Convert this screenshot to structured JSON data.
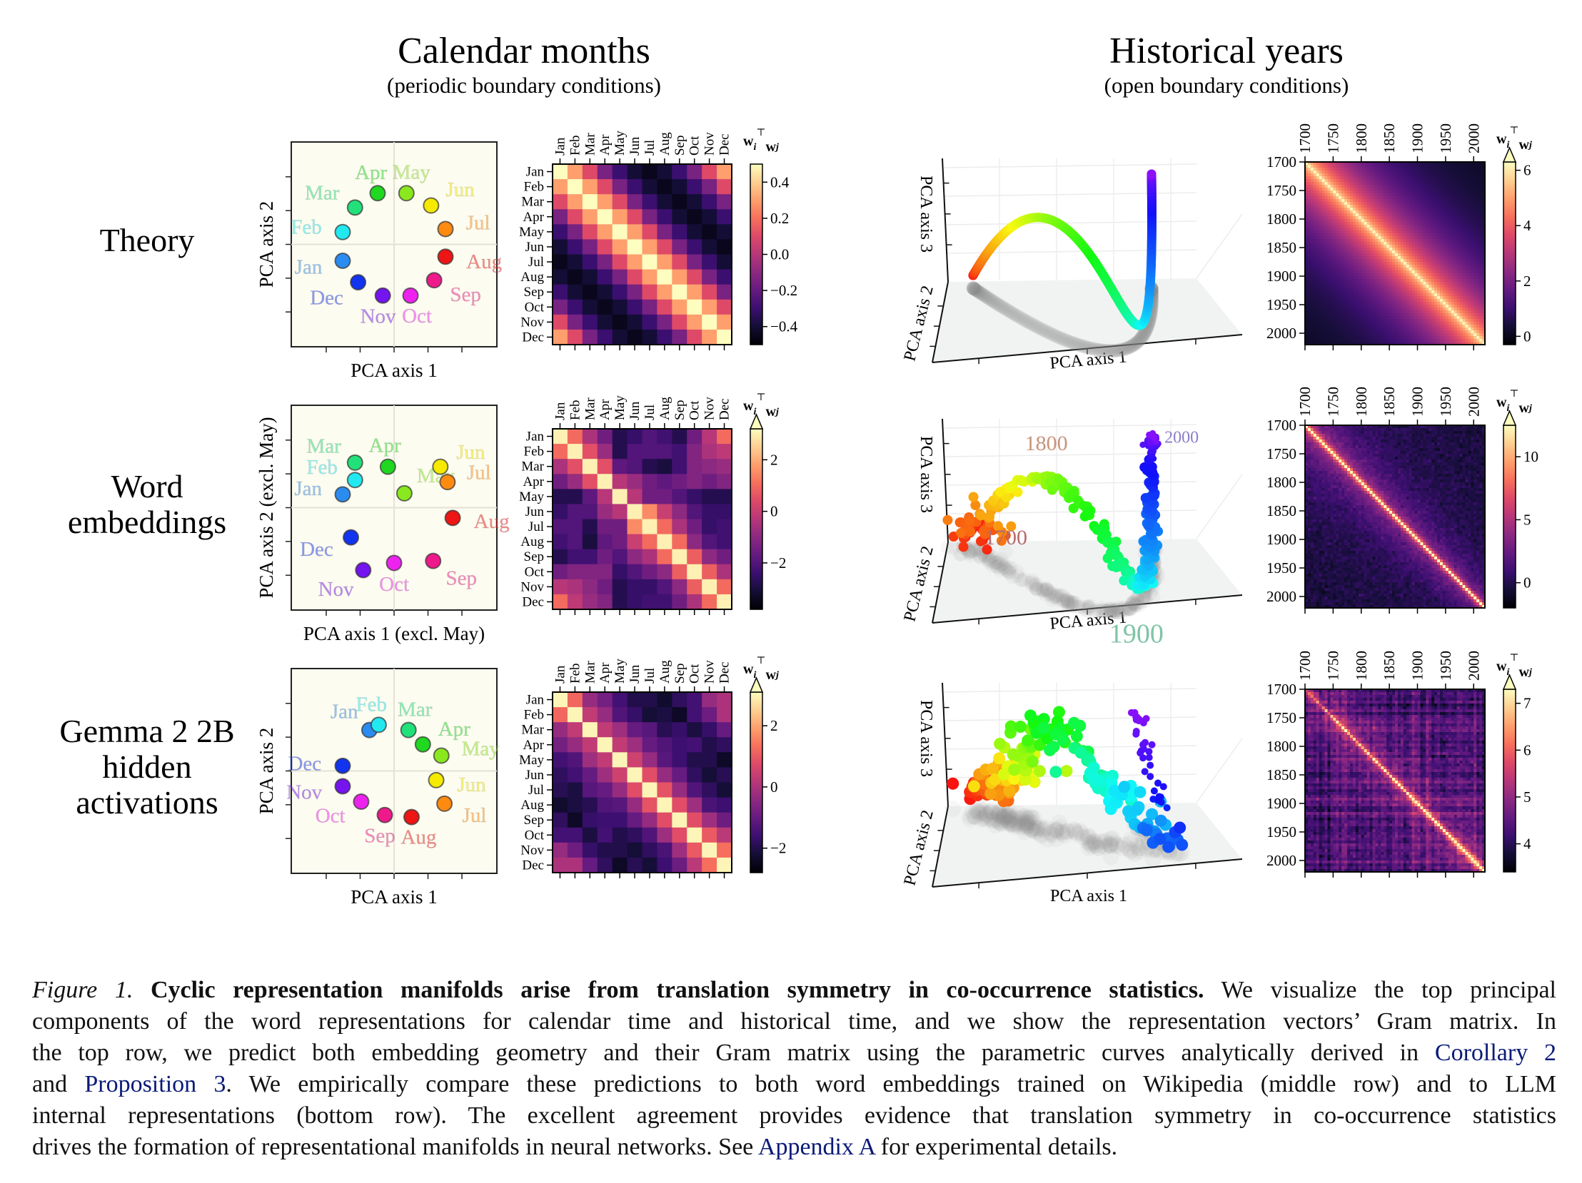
{
  "columns": [
    {
      "title": "Calendar months",
      "subtitle": "(periodic boundary conditions)"
    },
    {
      "title": "Historical years",
      "subtitle": "(open boundary conditions)"
    }
  ],
  "rows": [
    {
      "label_lines": [
        "Theory"
      ]
    },
    {
      "label_lines": [
        "Word",
        "embeddings"
      ]
    },
    {
      "label_lines": [
        "Gemma 2 2B",
        "hidden",
        "activations"
      ]
    }
  ],
  "colorbar_label": {
    "base1": "w",
    "sub1": "i",
    "sup": "⊤",
    "base2": "w",
    "sub2": "j"
  },
  "months": [
    "Jan",
    "Feb",
    "Mar",
    "Apr",
    "May",
    "Jun",
    "Jul",
    "Aug",
    "Sep",
    "Oct",
    "Nov",
    "Dec"
  ],
  "month_colors": [
    "#2a8cf0",
    "#22e8f0",
    "#22e07a",
    "#1fd81f",
    "#8ae81e",
    "#f5ea00",
    "#ff8a10",
    "#ee1515",
    "#ee1a8a",
    "#ee22ee",
    "#7414ee",
    "#1234ee"
  ],
  "chart_data": [
    {
      "id": "months-theory-scatter",
      "type": "scatter",
      "xlabel": "PCA axis 1",
      "ylabel": "PCA axis 2",
      "xlim": [
        -1,
        1
      ],
      "ylim": [
        -1,
        1
      ],
      "ticks": [
        -0.66,
        -0.33,
        0,
        0.33,
        0.66
      ],
      "grid_zero_lines": true,
      "points": [
        {
          "label": "Jan",
          "x": -0.5,
          "y": -0.16
        },
        {
          "label": "Feb",
          "x": -0.5,
          "y": 0.12
        },
        {
          "label": "Mar",
          "x": -0.38,
          "y": 0.36
        },
        {
          "label": "Apr",
          "x": -0.16,
          "y": 0.5
        },
        {
          "label": "May",
          "x": 0.12,
          "y": 0.5
        },
        {
          "label": "Jun",
          "x": 0.36,
          "y": 0.38
        },
        {
          "label": "Jul",
          "x": 0.5,
          "y": 0.15
        },
        {
          "label": "Aug",
          "x": 0.5,
          "y": -0.12
        },
        {
          "label": "Sep",
          "x": 0.39,
          "y": -0.35
        },
        {
          "label": "Oct",
          "x": 0.16,
          "y": -0.5
        },
        {
          "label": "Nov",
          "x": -0.11,
          "y": -0.5
        },
        {
          "label": "Dec",
          "x": -0.35,
          "y": -0.37
        }
      ]
    },
    {
      "id": "months-word-scatter",
      "type": "scatter",
      "xlabel": "PCA axis 1 (excl. May)",
      "ylabel": "PCA axis 2 (excl. May)",
      "xlim": [
        -1,
        1
      ],
      "ylim": [
        -1,
        1
      ],
      "ticks": [
        -0.66,
        -0.33,
        0,
        0.33,
        0.66
      ],
      "grid_zero_lines": true,
      "points": [
        {
          "label": "Jan",
          "x": -0.5,
          "y": 0.13
        },
        {
          "label": "Feb",
          "x": -0.38,
          "y": 0.27
        },
        {
          "label": "Mar",
          "x": -0.38,
          "y": 0.44
        },
        {
          "label": "Apr",
          "x": -0.06,
          "y": 0.4
        },
        {
          "label": "May",
          "x": 0.1,
          "y": 0.14
        },
        {
          "label": "Jun",
          "x": 0.45,
          "y": 0.4
        },
        {
          "label": "Jul",
          "x": 0.52,
          "y": 0.25
        },
        {
          "label": "Aug",
          "x": 0.57,
          "y": -0.1
        },
        {
          "label": "Sep",
          "x": 0.38,
          "y": -0.52
        },
        {
          "label": "Oct",
          "x": 0.0,
          "y": -0.54
        },
        {
          "label": "Nov",
          "x": -0.3,
          "y": -0.61
        },
        {
          "label": "Dec",
          "x": -0.42,
          "y": -0.29
        }
      ]
    },
    {
      "id": "months-gemma-scatter",
      "type": "scatter",
      "xlabel": "PCA axis 1",
      "ylabel": "PCA axis 2",
      "xlim": [
        -1,
        1
      ],
      "ylim": [
        -1,
        1
      ],
      "ticks": [
        -0.66,
        -0.33,
        0,
        0.33,
        0.66
      ],
      "grid_zero_lines": true,
      "points": [
        {
          "label": "Jan",
          "x": -0.24,
          "y": 0.4
        },
        {
          "label": "Feb",
          "x": -0.15,
          "y": 0.45
        },
        {
          "label": "Mar",
          "x": 0.14,
          "y": 0.4
        },
        {
          "label": "Apr",
          "x": 0.28,
          "y": 0.26
        },
        {
          "label": "May",
          "x": 0.46,
          "y": 0.15
        },
        {
          "label": "Jun",
          "x": 0.41,
          "y": -0.09
        },
        {
          "label": "Jul",
          "x": 0.49,
          "y": -0.32
        },
        {
          "label": "Aug",
          "x": 0.17,
          "y": -0.45
        },
        {
          "label": "Sep",
          "x": -0.09,
          "y": -0.43
        },
        {
          "label": "Oct",
          "x": -0.32,
          "y": -0.3
        },
        {
          "label": "Nov",
          "x": -0.5,
          "y": -0.15
        },
        {
          "label": "Dec",
          "x": -0.5,
          "y": 0.05
        }
      ]
    },
    {
      "id": "months-theory-gram",
      "type": "heatmap",
      "colormap": "magma",
      "clim": [
        -0.5,
        0.5
      ],
      "colorbar_extend": "neither",
      "colorbar_ticks": [
        0.4,
        0.2,
        0.0,
        -0.2,
        -0.4
      ],
      "colorbar_tick_labels": [
        "0.4",
        "0.2",
        "0.0",
        "−0.2",
        "−0.4"
      ],
      "values": [
        [
          0.5,
          0.3,
          0.1,
          -0.15,
          -0.3,
          -0.4,
          -0.45,
          -0.4,
          -0.3,
          -0.15,
          0.1,
          0.3
        ],
        [
          0.3,
          0.5,
          0.3,
          0.1,
          -0.15,
          -0.3,
          -0.4,
          -0.45,
          -0.4,
          -0.3,
          -0.15,
          0.1
        ],
        [
          0.1,
          0.3,
          0.5,
          0.3,
          0.1,
          -0.15,
          -0.3,
          -0.4,
          -0.45,
          -0.4,
          -0.3,
          -0.15
        ],
        [
          -0.15,
          0.1,
          0.3,
          0.5,
          0.3,
          0.1,
          -0.15,
          -0.3,
          -0.4,
          -0.45,
          -0.4,
          -0.3
        ],
        [
          -0.3,
          -0.15,
          0.1,
          0.3,
          0.5,
          0.3,
          0.1,
          -0.15,
          -0.3,
          -0.4,
          -0.45,
          -0.4
        ],
        [
          -0.4,
          -0.3,
          -0.15,
          0.1,
          0.3,
          0.5,
          0.3,
          0.1,
          -0.15,
          -0.3,
          -0.4,
          -0.45
        ],
        [
          -0.45,
          -0.4,
          -0.3,
          -0.15,
          0.1,
          0.3,
          0.5,
          0.3,
          0.1,
          -0.15,
          -0.3,
          -0.4
        ],
        [
          -0.4,
          -0.45,
          -0.4,
          -0.3,
          -0.15,
          0.1,
          0.3,
          0.5,
          0.3,
          0.1,
          -0.15,
          -0.3
        ],
        [
          -0.3,
          -0.4,
          -0.45,
          -0.4,
          -0.3,
          -0.15,
          0.1,
          0.3,
          0.5,
          0.3,
          0.1,
          -0.15
        ],
        [
          -0.15,
          -0.3,
          -0.4,
          -0.45,
          -0.4,
          -0.3,
          -0.15,
          0.1,
          0.3,
          0.5,
          0.3,
          0.1
        ],
        [
          0.1,
          -0.15,
          -0.3,
          -0.4,
          -0.45,
          -0.4,
          -0.3,
          -0.15,
          0.1,
          0.3,
          0.5,
          0.3
        ],
        [
          0.3,
          0.1,
          -0.15,
          -0.3,
          -0.4,
          -0.45,
          -0.4,
          -0.3,
          -0.15,
          0.1,
          0.3,
          0.5
        ]
      ]
    },
    {
      "id": "months-word-gram",
      "type": "heatmap",
      "colormap": "magma",
      "clim": [
        -3.8,
        3.2
      ],
      "colorbar_extend": "max",
      "colorbar_ticks": [
        2,
        0,
        -2
      ],
      "colorbar_tick_labels": [
        "2",
        "0",
        "−2"
      ],
      "values": [
        [
          3,
          1,
          -0.5,
          -1.5,
          -2.8,
          -2.5,
          -2,
          -2.3,
          -2.8,
          -1.5,
          -0.3,
          1
        ],
        [
          1,
          3,
          0.5,
          -0.8,
          -2.8,
          -2,
          -2,
          -2,
          -2.3,
          -1.2,
          -0.5,
          -0.2
        ],
        [
          -0.5,
          0.5,
          3,
          0.5,
          -1.8,
          -2,
          -2.8,
          -3,
          -2.3,
          -1.2,
          -1,
          -0.8
        ],
        [
          -1.5,
          -0.8,
          0.5,
          3,
          -0.3,
          -0.8,
          -1.5,
          -1.8,
          -1.5,
          -1.2,
          -1.5,
          -1.2
        ],
        [
          -2.8,
          -2.8,
          -1.8,
          -0.3,
          3,
          -0.3,
          -1.5,
          -1.5,
          -2,
          -2.5,
          -2.8,
          -2.8
        ],
        [
          -2.5,
          -2,
          -2,
          -0.8,
          -0.3,
          3,
          1.5,
          0,
          -1,
          -2,
          -2.5,
          -2.5
        ],
        [
          -2,
          -2,
          -2.8,
          -1.5,
          -1.5,
          1.5,
          3,
          1,
          -0.5,
          -1.5,
          -2.5,
          -2.3
        ],
        [
          -2.3,
          -2,
          -3,
          -1.8,
          -1.5,
          0,
          1,
          3,
          1,
          -1,
          -2,
          -2.3
        ],
        [
          -2.8,
          -2.3,
          -2.3,
          -1.5,
          -2,
          -1,
          -0.5,
          1,
          3,
          0.8,
          -1,
          -1.5
        ],
        [
          -1.5,
          -1.2,
          -1.2,
          -1.2,
          -2.5,
          -2,
          -1.5,
          -1,
          0.8,
          3,
          0.8,
          -0.5
        ],
        [
          -0.3,
          -0.5,
          -1,
          -1.5,
          -2.8,
          -2.5,
          -2.5,
          -2,
          -1,
          0.8,
          3,
          1
        ],
        [
          1,
          -0.2,
          -0.8,
          -1.2,
          -2.8,
          -2.5,
          -2.3,
          -2.3,
          -1.5,
          -0.5,
          1,
          3
        ]
      ]
    },
    {
      "id": "months-gemma-gram",
      "type": "heatmap",
      "colormap": "magma",
      "clim": [
        -2.8,
        3.1
      ],
      "colorbar_extend": "max",
      "colorbar_ticks": [
        2,
        0,
        -2
      ],
      "colorbar_tick_labels": [
        "2",
        "0",
        "−2"
      ],
      "values": [
        [
          3,
          1.2,
          -0.3,
          -0.8,
          -1.5,
          -2,
          -2,
          -2.3,
          -1.8,
          -1.5,
          -0.3,
          0
        ],
        [
          1.2,
          3,
          0.3,
          -0.3,
          -1.3,
          -1.7,
          -2.2,
          -2.1,
          -2.4,
          -1.5,
          -0.9,
          0
        ],
        [
          -0.3,
          0.3,
          3,
          0.3,
          -0.2,
          -1,
          -1.2,
          -1.9,
          -1.7,
          -2.1,
          -1.7,
          -1
        ],
        [
          -0.8,
          -0.3,
          0.3,
          3,
          0.3,
          -0.2,
          -1,
          -1.3,
          -1.6,
          -1.5,
          -2,
          -1.8
        ],
        [
          -1.5,
          -1.3,
          -0.2,
          0.3,
          3,
          0.5,
          -0.3,
          -1.2,
          -1.6,
          -2,
          -2,
          -2.4
        ],
        [
          -1.8,
          -1.5,
          -1,
          -0.2,
          0.5,
          3,
          0.8,
          -0.3,
          -1,
          -1.8,
          -2.2,
          -1.9
        ],
        [
          -1.9,
          -2.1,
          -1.2,
          -1,
          -0.3,
          0.8,
          3,
          0.9,
          -0.3,
          -1.3,
          -1.8,
          -2.2
        ],
        [
          -2.3,
          -2.1,
          -1.9,
          -1.3,
          -1.2,
          -0.3,
          0.9,
          3,
          0.8,
          -0.2,
          -1.4,
          -1.6
        ],
        [
          -1.8,
          -2.4,
          -1.7,
          -1.6,
          -1.6,
          -1,
          -0.3,
          0.8,
          3,
          0.8,
          -0.2,
          -0.9
        ],
        [
          -1.5,
          -1.5,
          -2.1,
          -1.5,
          -2,
          -1.8,
          -1.3,
          -0.2,
          0.8,
          3,
          1,
          0.2
        ],
        [
          -0.3,
          -0.9,
          -1.7,
          -2,
          -2,
          -2.2,
          -1.8,
          -1.4,
          -0.2,
          1,
          3,
          1.3
        ],
        [
          0,
          0,
          -1,
          -1.8,
          -2.4,
          -1.9,
          -2.2,
          -1.6,
          -0.9,
          0.2,
          1.3,
          3
        ]
      ]
    },
    {
      "id": "years-theory-3d",
      "type": "line3d",
      "xlabel": "PCA axis 1",
      "ylabel": "PCA axis 2",
      "zlabel": "PCA axis 3",
      "year_range": [
        1700,
        2020
      ],
      "colormap": "rainbow",
      "projection_shadow": true
    },
    {
      "id": "years-word-3d",
      "type": "scatter3d",
      "xlabel": "PCA axis 1",
      "ylabel": "PCA axis 2",
      "zlabel": "PCA axis 3",
      "year_range": [
        1700,
        2020
      ],
      "colormap": "rainbow",
      "projection_shadow": true,
      "annotations": [
        {
          "text": "1800",
          "year": 1800,
          "color": "#c9937a"
        },
        {
          "text": "1700",
          "year": 1700,
          "color": "#b86a6a"
        },
        {
          "text": "1900",
          "year": 1900,
          "color": "#7fc4a6"
        },
        {
          "text": "2000",
          "year": 2000,
          "color": "#8a80c8"
        }
      ]
    },
    {
      "id": "years-gemma-3d",
      "type": "scatter3d",
      "xlabel": "PCA axis 1",
      "ylabel": "PCA axis 2",
      "zlabel": "PCA axis 3",
      "year_range": [
        1700,
        2020
      ],
      "colormap": "rainbow",
      "projection_shadow": true,
      "waypoints": [
        {
          "year": 1700,
          "x": -0.94,
          "y": 1.0,
          "z": -0.86
        },
        {
          "year": 1770,
          "x": -0.6,
          "y": 0.8,
          "z": -0.34
        },
        {
          "year": 1840,
          "x": -0.34,
          "y": 0.5,
          "z": 0.85
        },
        {
          "year": 1900,
          "x": 0.21,
          "y": 0.0,
          "z": -0.04
        },
        {
          "year": 1960,
          "x": 0.86,
          "y": -0.3,
          "z": -1.15
        },
        {
          "year": 2020,
          "x": 0.7,
          "y": 0.6,
          "z": 1.08
        }
      ]
    },
    {
      "id": "years-theory-gram",
      "type": "heatmap",
      "colormap": "magma",
      "xlim": [
        1700,
        2020
      ],
      "ticks": [
        1700,
        1750,
        1800,
        1850,
        1900,
        1950,
        2000
      ],
      "tick_labels": [
        "1700",
        "1750",
        "1800",
        "1850",
        "1900",
        "1950",
        "2000"
      ],
      "clim": [
        -0.3,
        6.3
      ],
      "colorbar_extend": "max",
      "colorbar_ticks": [
        6,
        4,
        2,
        0
      ],
      "colorbar_tick_labels": [
        "6",
        "4",
        "2",
        "0"
      ]
    },
    {
      "id": "years-word-gram",
      "type": "heatmap",
      "colormap": "magma",
      "xlim": [
        1700,
        2020
      ],
      "ticks": [
        1700,
        1750,
        1800,
        1850,
        1900,
        1950,
        2000
      ],
      "tick_labels": [
        "1700",
        "1750",
        "1800",
        "1850",
        "1900",
        "1950",
        "2000"
      ],
      "clim": [
        -2,
        12.5
      ],
      "colorbar_extend": "max",
      "colorbar_ticks": [
        10,
        5,
        0
      ],
      "colorbar_tick_labels": [
        "10",
        "5",
        "0"
      ]
    },
    {
      "id": "years-gemma-gram",
      "type": "heatmap",
      "colormap": "magma",
      "xlim": [
        1700,
        2020
      ],
      "ticks": [
        1700,
        1750,
        1800,
        1850,
        1900,
        1950,
        2000
      ],
      "tick_labels": [
        "1700",
        "1750",
        "1800",
        "1850",
        "1900",
        "1950",
        "2000"
      ],
      "clim": [
        3.4,
        7.3
      ],
      "colorbar_extend": "max",
      "colorbar_ticks": [
        7,
        6,
        5,
        4
      ],
      "colorbar_tick_labels": [
        "7",
        "6",
        "5",
        "4"
      ]
    }
  ],
  "caption": {
    "lines": [
      [
        {
          "t": "Figure 1.",
          "s": "fig"
        },
        {
          "t": " Cyclic representation manifolds arise from translation symmetry in co-occurrence statistics.",
          "s": "bold"
        },
        {
          "t": " We visualize the top principal",
          "s": ""
        }
      ],
      [
        {
          "t": "components of the word representations for calendar time and historical time, and we show the representation vectors’ Gram matrix. In",
          "s": ""
        }
      ],
      [
        {
          "t": "the top row, we predict both embedding geometry and their Gram matrix using the parametric curves analytically derived in ",
          "s": ""
        },
        {
          "t": "Corollary 2",
          "s": "link"
        }
      ],
      [
        {
          "t": "and ",
          "s": ""
        },
        {
          "t": "Proposition 3",
          "s": "link"
        },
        {
          "t": ". We empirically compare these predictions to both word embeddings trained on Wikipedia (middle row) and to LLM",
          "s": ""
        }
      ],
      [
        {
          "t": "internal representations (bottom row). The excellent agreement provides evidence that translation symmetry in co-occurrence statistics",
          "s": ""
        }
      ],
      [
        {
          "t": "drives the formation of representational manifolds in neural networks. See ",
          "s": ""
        },
        {
          "t": "Appendix A",
          "s": "link"
        },
        {
          "t": " for experimental details.",
          "s": ""
        }
      ]
    ]
  }
}
